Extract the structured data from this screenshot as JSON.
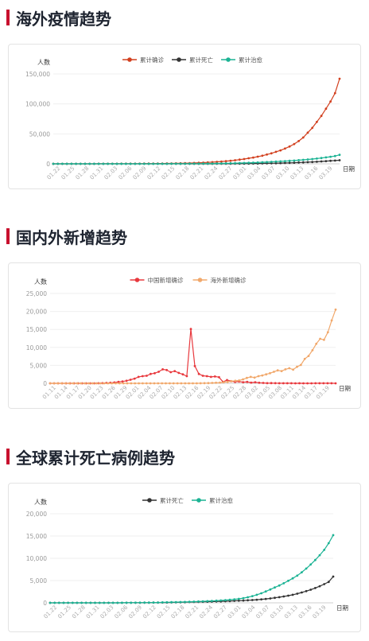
{
  "sections": [
    {
      "title": "海外疫情趋势"
    },
    {
      "title": "国内外新增趋势"
    },
    {
      "title": "全球累计死亡病例趋势"
    }
  ],
  "chart_data": [
    {
      "type": "line",
      "ylabel": "人数",
      "xlabel": "日期",
      "ylim": [
        0,
        150000
      ],
      "yticks": [
        0,
        50000,
        100000,
        150000
      ],
      "ytick_labels": [
        "0",
        "50,000",
        "100,000",
        "150,000"
      ],
      "grid": true,
      "legend": "top-center",
      "x_labels": [
        "01.22",
        "01.25",
        "01.28",
        "01.31",
        "02.03",
        "02.06",
        "02.09",
        "02.12",
        "02.15",
        "02.18",
        "02.21",
        "02.24",
        "02.27",
        "03.01",
        "03.04",
        "03.07",
        "03.10",
        "03.13",
        "03.16",
        "03.19"
      ],
      "series": [
        {
          "name": "累计确诊",
          "color": "#d2401f",
          "values": [
            10,
            12,
            15,
            18,
            20,
            25,
            30,
            40,
            50,
            60,
            80,
            100,
            120,
            150,
            170,
            200,
            220,
            250,
            280,
            300,
            350,
            400,
            450,
            500,
            550,
            600,
            700,
            800,
            900,
            1000,
            1200,
            1400,
            1700,
            2000,
            2400,
            2800,
            3300,
            3800,
            4500,
            5200,
            6000,
            7000,
            8000,
            9300,
            10500,
            12000,
            13500,
            15500,
            17500,
            20000,
            22500,
            25500,
            29000,
            33000,
            38000,
            44000,
            52000,
            60000,
            70000,
            80000,
            92000,
            104000,
            118000,
            142000
          ]
        },
        {
          "name": "累计死亡",
          "color": "#333333",
          "values": [
            0,
            0,
            0,
            0,
            0,
            0,
            0,
            0,
            0,
            0,
            0,
            0,
            0,
            0,
            1,
            1,
            2,
            2,
            3,
            3,
            4,
            5,
            6,
            7,
            8,
            9,
            10,
            12,
            14,
            17,
            20,
            25,
            30,
            40,
            50,
            60,
            80,
            100,
            130,
            170,
            210,
            260,
            320,
            390,
            470,
            560,
            660,
            780,
            900,
            1050,
            1200,
            1400,
            1600,
            1850,
            2100,
            2400,
            2750,
            3100,
            3500,
            3950,
            4450,
            5000,
            5500,
            6000
          ]
        },
        {
          "name": "累计治愈",
          "color": "#1cb394",
          "values": [
            0,
            0,
            0,
            0,
            0,
            0,
            0,
            0,
            0,
            0,
            1,
            1,
            2,
            3,
            4,
            5,
            6,
            8,
            10,
            15,
            20,
            25,
            30,
            40,
            50,
            60,
            80,
            100,
            130,
            160,
            200,
            250,
            300,
            360,
            430,
            500,
            600,
            700,
            800,
            950,
            1100,
            1300,
            1500,
            1750,
            2000,
            2300,
            2600,
            2950,
            3300,
            3700,
            4100,
            4550,
            5000,
            5500,
            6050,
            6650,
            7300,
            8000,
            8800,
            9700,
            10700,
            11800,
            13000,
            15000
          ]
        }
      ]
    },
    {
      "type": "line",
      "ylabel": "人数",
      "xlabel": "日期",
      "ylim": [
        0,
        25000
      ],
      "yticks": [
        0,
        5000,
        10000,
        15000,
        20000,
        25000
      ],
      "ytick_labels": [
        "0",
        "5,000",
        "10,000",
        "15,000",
        "20,000",
        "25,000"
      ],
      "grid": true,
      "legend": "top-center",
      "x_labels": [
        "01.11",
        "01.14",
        "01.17",
        "01.20",
        "01.23",
        "01.26",
        "01.29",
        "02.01",
        "02.04",
        "02.07",
        "02.10",
        "02.13",
        "02.16",
        "02.19",
        "02.22",
        "02.25",
        "02.28",
        "03.02",
        "03.05",
        "03.08",
        "03.11",
        "03.14",
        "03.17",
        "03.19"
      ],
      "series": [
        {
          "name": "中国新增确诊",
          "color": "#e8383d",
          "values": [
            0,
            0,
            0,
            0,
            0,
            0,
            0,
            0,
            0,
            0,
            0,
            10,
            20,
            50,
            100,
            150,
            250,
            400,
            500,
            700,
            1000,
            1300,
            1800,
            2000,
            2100,
            2600,
            2800,
            3200,
            3900,
            3700,
            3100,
            3400,
            2900,
            2500,
            2000,
            15100,
            4800,
            2600,
            2100,
            2000,
            1800,
            1900,
            1700,
            400,
            900,
            600,
            400,
            500,
            300,
            400,
            200,
            300,
            150,
            100,
            50,
            60,
            40,
            30,
            20,
            30,
            20,
            10,
            15,
            10,
            10,
            10,
            20,
            20,
            30,
            30,
            20,
            10
          ]
        },
        {
          "name": "海外新增确诊",
          "color": "#f1a86b",
          "values": [
            0,
            0,
            0,
            0,
            0,
            0,
            0,
            0,
            0,
            0,
            0,
            0,
            0,
            0,
            0,
            0,
            0,
            0,
            0,
            0,
            0,
            0,
            0,
            0,
            0,
            0,
            0,
            0,
            0,
            0,
            0,
            0,
            0,
            0,
            0,
            0,
            0,
            0,
            10,
            20,
            40,
            60,
            100,
            150,
            200,
            300,
            400,
            600,
            700,
            800,
            1100,
            1500,
            1800,
            1600,
            2000,
            2200,
            2500,
            2800,
            3200,
            3600,
            3400,
            3900,
            4200,
            3800,
            4600,
            5100,
            6800,
            7600,
            9200,
            11000,
            12400,
            12100,
            14200,
            17500,
            20500
          ]
        }
      ]
    },
    {
      "type": "line",
      "ylabel": "人数",
      "xlabel": "日期",
      "ylim": [
        0,
        20000
      ],
      "yticks": [
        0,
        5000,
        10000,
        15000,
        20000
      ],
      "ytick_labels": [
        "0",
        "5,000",
        "10,000",
        "15,000",
        "20,000"
      ],
      "grid": true,
      "legend": "top-center",
      "x_labels": [
        "01.22",
        "01.25",
        "01.28",
        "01.31",
        "02.03",
        "02.06",
        "02.09",
        "02.12",
        "02.15",
        "02.18",
        "02.21",
        "02.24",
        "02.27",
        "03.01",
        "03.04",
        "03.07",
        "03.10",
        "03.13",
        "03.16",
        "03.19"
      ],
      "series": [
        {
          "name": "累计死亡",
          "color": "#333333",
          "values": [
            0,
            0,
            0,
            0,
            0,
            0,
            0,
            0,
            0,
            0,
            0,
            1,
            2,
            3,
            4,
            6,
            8,
            10,
            15,
            20,
            25,
            30,
            40,
            50,
            60,
            70,
            80,
            90,
            110,
            130,
            150,
            170,
            190,
            210,
            230,
            250,
            270,
            300,
            330,
            360,
            400,
            440,
            480,
            520,
            570,
            630,
            700,
            780,
            880,
            990,
            1120,
            1260,
            1420,
            1600,
            1810,
            2050,
            2320,
            2620,
            2950,
            3320,
            3730,
            4190,
            4700,
            5900
          ]
        },
        {
          "name": "累计治愈",
          "color": "#1cb394",
          "values": [
            0,
            0,
            0,
            0,
            0,
            0,
            0,
            0,
            0,
            0,
            1,
            2,
            3,
            4,
            6,
            8,
            10,
            15,
            20,
            30,
            40,
            50,
            60,
            70,
            80,
            100,
            120,
            140,
            160,
            180,
            200,
            230,
            260,
            300,
            340,
            380,
            430,
            480,
            540,
            610,
            690,
            790,
            900,
            1050,
            1250,
            1500,
            1800,
            2150,
            2550,
            3000,
            3450,
            3900,
            4400,
            4950,
            5500,
            6100,
            6850,
            7700,
            8600,
            9600,
            10700,
            11900,
            13400,
            15200
          ]
        }
      ]
    }
  ]
}
